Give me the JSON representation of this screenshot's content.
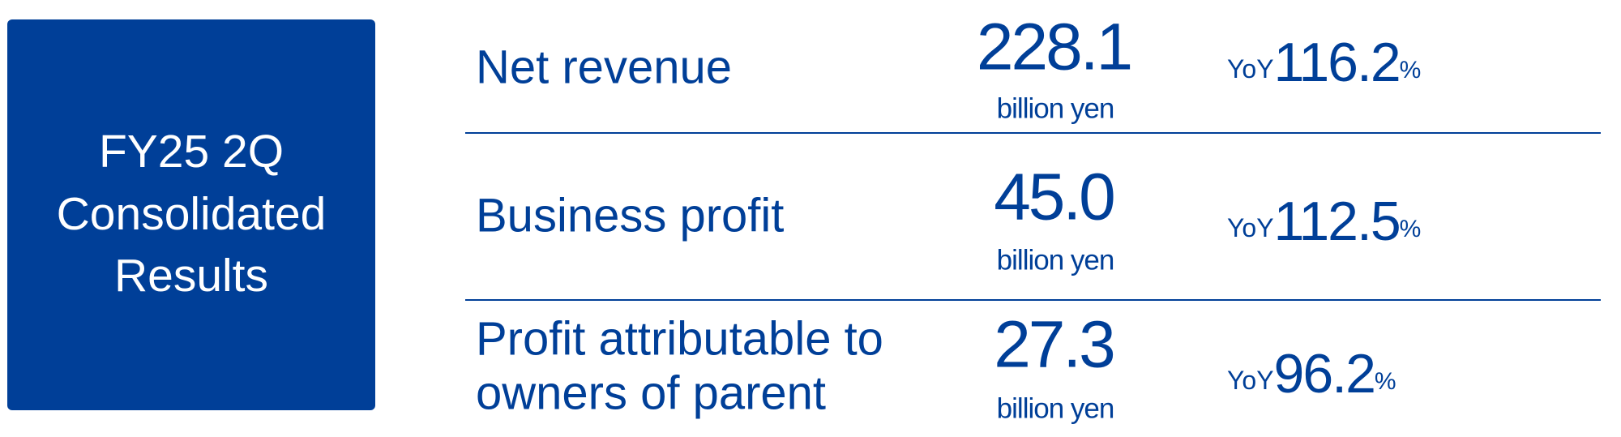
{
  "header": {
    "title_lines": [
      "FY25 2Q",
      "Consolidated",
      "Results"
    ]
  },
  "rows": [
    {
      "label_lines": [
        "Net revenue"
      ],
      "value": "228.1",
      "unit": "billion yen",
      "yoy_prefix": "YoY",
      "yoy_value": "116.2",
      "yoy_unit": "%"
    },
    {
      "label_lines": [
        "Business profit"
      ],
      "value": "45.0",
      "unit": "billion yen",
      "yoy_prefix": "YoY",
      "yoy_value": "112.5",
      "yoy_unit": "%"
    },
    {
      "label_lines": [
        "Profit attributable to",
        "owners of parent"
      ],
      "value": "27.3",
      "unit": "billion yen",
      "yoy_prefix": "YoY",
      "yoy_value": "96.2",
      "yoy_unit": "%"
    }
  ]
}
